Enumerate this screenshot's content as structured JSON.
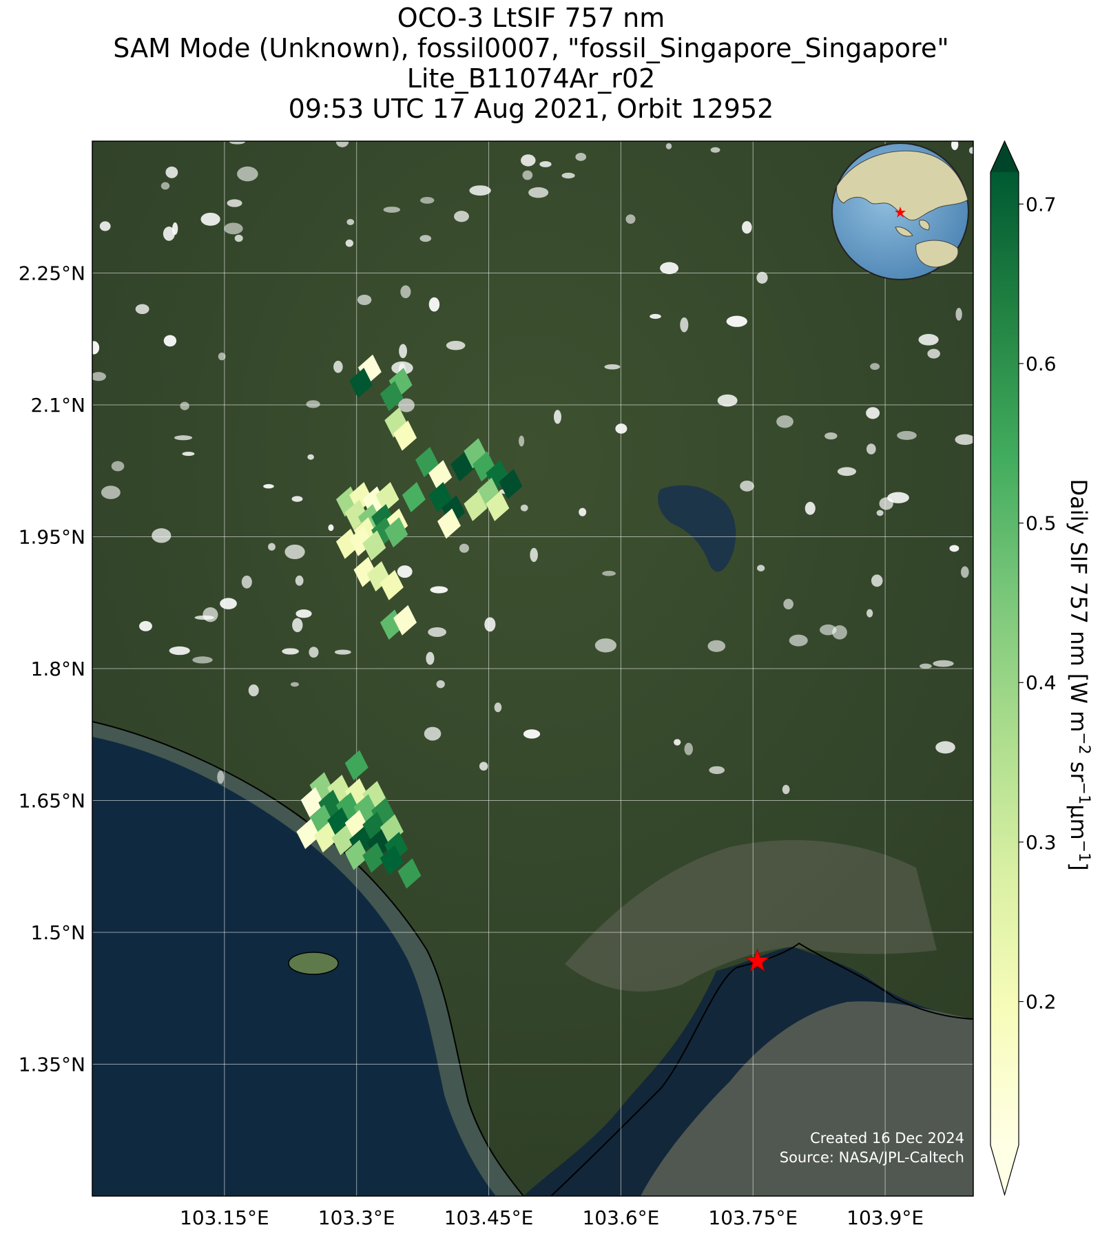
{
  "title": {
    "line1": "OCO-3 LtSIF 757 nm",
    "line2": "SAM Mode (Unknown), fossil0007, \"fossil_Singapore_Singapore\"",
    "line3": "Lite_B11074Ar_r02",
    "line4": "09:53 UTC 17 Aug 2021, Orbit 12952"
  },
  "map": {
    "lon_ticks": [
      "103.15°E",
      "103.3°E",
      "103.45°E",
      "103.6°E",
      "103.75°E",
      "103.9°E"
    ],
    "lon_values": [
      103.15,
      103.3,
      103.45,
      103.6,
      103.75,
      103.9
    ],
    "lat_ticks": [
      "2.25°N",
      "2.1°N",
      "1.95°N",
      "1.8°N",
      "1.65°N",
      "1.5°N",
      "1.35°N"
    ],
    "lat_values": [
      2.25,
      2.1,
      1.95,
      1.8,
      1.65,
      1.5,
      1.35
    ],
    "lon_range": [
      103.0,
      104.0
    ],
    "lat_range": [
      1.2,
      2.4
    ],
    "target_name": "fossil_Singapore_Singapore",
    "target_marker": {
      "lon": 103.755,
      "lat": 1.467,
      "color": "#ff0000",
      "icon": "star-icon"
    },
    "credit_line1": "Created 16 Dec 2024",
    "credit_line2": "Source: NASA/JPL-Caltech",
    "inset": {
      "type": "globe",
      "icon": "globe-icon",
      "marker_color": "#ff0000"
    }
  },
  "colorbar": {
    "label_main": "Daily SIF 757 nm [W m",
    "label_exp1": "−2",
    "label_mid": " sr",
    "label_exp2": "−1",
    "label_mu": "μm",
    "label_exp3": "−1",
    "label_end": "]",
    "ticks": [
      "0.7",
      "0.6",
      "0.5",
      "0.4",
      "0.3",
      "0.2"
    ],
    "tick_values": [
      0.7,
      0.6,
      0.5,
      0.4,
      0.3,
      0.2
    ],
    "vmin": 0.11,
    "vmax": 0.72,
    "cmap": "YlGn",
    "extend": "both"
  },
  "chart_data": {
    "type": "scatter",
    "title": "OCO-3 LtSIF 757 nm",
    "subtitle": "SAM Mode (Unknown), fossil0007, \"fossil_Singapore_Singapore\"",
    "xlabel": "",
    "ylabel": "",
    "xlim": [
      103.0,
      104.0
    ],
    "ylim": [
      1.2,
      2.4
    ],
    "colorbar_label": "Daily SIF 757 nm [W m−2 sr−1μm−1]",
    "points": [
      {
        "lon": 103.315,
        "lat": 2.14,
        "value": 0.13
      },
      {
        "lon": 103.305,
        "lat": 2.125,
        "value": 0.68
      },
      {
        "lon": 103.35,
        "lat": 2.125,
        "value": 0.45
      },
      {
        "lon": 103.34,
        "lat": 2.11,
        "value": 0.55
      },
      {
        "lon": 103.345,
        "lat": 2.08,
        "value": 0.3
      },
      {
        "lon": 103.355,
        "lat": 2.065,
        "value": 0.18
      },
      {
        "lon": 103.38,
        "lat": 2.035,
        "value": 0.52
      },
      {
        "lon": 103.395,
        "lat": 2.02,
        "value": 0.15
      },
      {
        "lon": 103.42,
        "lat": 2.03,
        "value": 0.7
      },
      {
        "lon": 103.435,
        "lat": 2.045,
        "value": 0.42
      },
      {
        "lon": 103.445,
        "lat": 2.03,
        "value": 0.5
      },
      {
        "lon": 103.46,
        "lat": 2.02,
        "value": 0.62
      },
      {
        "lon": 103.475,
        "lat": 2.01,
        "value": 0.7
      },
      {
        "lon": 103.45,
        "lat": 2.0,
        "value": 0.38
      },
      {
        "lon": 103.435,
        "lat": 1.985,
        "value": 0.28
      },
      {
        "lon": 103.46,
        "lat": 1.985,
        "value": 0.25
      },
      {
        "lon": 103.395,
        "lat": 1.995,
        "value": 0.66
      },
      {
        "lon": 103.41,
        "lat": 1.98,
        "value": 0.7
      },
      {
        "lon": 103.405,
        "lat": 1.965,
        "value": 0.15
      },
      {
        "lon": 103.365,
        "lat": 1.995,
        "value": 0.48
      },
      {
        "lon": 103.29,
        "lat": 1.99,
        "value": 0.35
      },
      {
        "lon": 103.305,
        "lat": 1.995,
        "value": 0.2
      },
      {
        "lon": 103.32,
        "lat": 1.99,
        "value": 0.14
      },
      {
        "lon": 103.335,
        "lat": 1.995,
        "value": 0.25
      },
      {
        "lon": 103.3,
        "lat": 1.975,
        "value": 0.28
      },
      {
        "lon": 103.315,
        "lat": 1.97,
        "value": 0.4
      },
      {
        "lon": 103.33,
        "lat": 1.97,
        "value": 0.6
      },
      {
        "lon": 103.345,
        "lat": 1.965,
        "value": 0.18
      },
      {
        "lon": 103.31,
        "lat": 1.955,
        "value": 0.2
      },
      {
        "lon": 103.33,
        "lat": 1.955,
        "value": 0.55
      },
      {
        "lon": 103.345,
        "lat": 1.955,
        "value": 0.45
      },
      {
        "lon": 103.29,
        "lat": 1.942,
        "value": 0.2
      },
      {
        "lon": 103.305,
        "lat": 1.945,
        "value": 0.17
      },
      {
        "lon": 103.32,
        "lat": 1.94,
        "value": 0.3
      },
      {
        "lon": 103.31,
        "lat": 1.91,
        "value": 0.17
      },
      {
        "lon": 103.325,
        "lat": 1.905,
        "value": 0.25
      },
      {
        "lon": 103.34,
        "lat": 1.895,
        "value": 0.2
      },
      {
        "lon": 103.34,
        "lat": 1.85,
        "value": 0.45
      },
      {
        "lon": 103.355,
        "lat": 1.855,
        "value": 0.15
      },
      {
        "lon": 103.3,
        "lat": 1.69,
        "value": 0.5
      },
      {
        "lon": 103.26,
        "lat": 1.665,
        "value": 0.38
      },
      {
        "lon": 103.28,
        "lat": 1.662,
        "value": 0.28
      },
      {
        "lon": 103.3,
        "lat": 1.658,
        "value": 0.22
      },
      {
        "lon": 103.32,
        "lat": 1.655,
        "value": 0.3
      },
      {
        "lon": 103.25,
        "lat": 1.648,
        "value": 0.13
      },
      {
        "lon": 103.27,
        "lat": 1.645,
        "value": 0.6
      },
      {
        "lon": 103.29,
        "lat": 1.642,
        "value": 0.5
      },
      {
        "lon": 103.31,
        "lat": 1.64,
        "value": 0.45
      },
      {
        "lon": 103.33,
        "lat": 1.636,
        "value": 0.55
      },
      {
        "lon": 103.26,
        "lat": 1.628,
        "value": 0.45
      },
      {
        "lon": 103.28,
        "lat": 1.625,
        "value": 0.65
      },
      {
        "lon": 103.3,
        "lat": 1.622,
        "value": 0.16
      },
      {
        "lon": 103.32,
        "lat": 1.62,
        "value": 0.6
      },
      {
        "lon": 103.34,
        "lat": 1.617,
        "value": 0.35
      },
      {
        "lon": 103.245,
        "lat": 1.612,
        "value": 0.14
      },
      {
        "lon": 103.265,
        "lat": 1.608,
        "value": 0.22
      },
      {
        "lon": 103.285,
        "lat": 1.605,
        "value": 0.32
      },
      {
        "lon": 103.305,
        "lat": 1.603,
        "value": 0.68
      },
      {
        "lon": 103.325,
        "lat": 1.6,
        "value": 0.7
      },
      {
        "lon": 103.345,
        "lat": 1.597,
        "value": 0.62
      },
      {
        "lon": 103.3,
        "lat": 1.588,
        "value": 0.4
      },
      {
        "lon": 103.32,
        "lat": 1.585,
        "value": 0.55
      },
      {
        "lon": 103.34,
        "lat": 1.582,
        "value": 0.65
      },
      {
        "lon": 103.36,
        "lat": 1.567,
        "value": 0.52
      }
    ]
  }
}
